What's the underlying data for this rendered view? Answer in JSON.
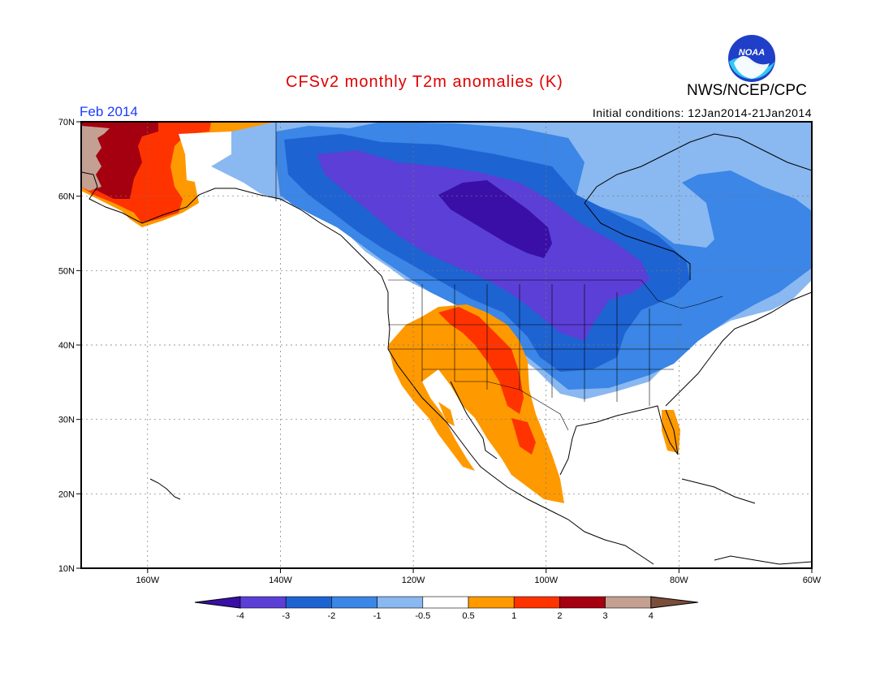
{
  "header": {
    "title": "CFSv2 monthly T2m anomalies (K)",
    "agency": "NWS/NCEP/CPC",
    "valid_month": "Feb 2014",
    "initial_conditions": "Initial conditions: 12Jan2014-21Jan2014",
    "logo_text": "NOAA"
  },
  "map": {
    "region": "North America",
    "lon_range": [
      -170,
      -60
    ],
    "lat_range": [
      10,
      70
    ],
    "lat_ticks": [
      {
        "value": 70,
        "label": "70N"
      },
      {
        "value": 60,
        "label": "60N"
      },
      {
        "value": 50,
        "label": "50N"
      },
      {
        "value": 40,
        "label": "40N"
      },
      {
        "value": 30,
        "label": "30N"
      },
      {
        "value": 20,
        "label": "20N"
      },
      {
        "value": 10,
        "label": "10N"
      }
    ],
    "lon_ticks": [
      {
        "value": -160,
        "label": "160W"
      },
      {
        "value": -140,
        "label": "140W"
      },
      {
        "value": -120,
        "label": "120W"
      },
      {
        "value": -100,
        "label": "100W"
      },
      {
        "value": -80,
        "label": "80W"
      },
      {
        "value": -60,
        "label": "60W"
      }
    ],
    "grid": true,
    "anomaly_regions": [
      {
        "name": "western-alaska",
        "category": 3
      },
      {
        "name": "alaska-coast",
        "category": 1
      },
      {
        "name": "canada-cold",
        "category": -1
      },
      {
        "name": "hudson-bay-core",
        "category": -4
      },
      {
        "name": "central-canada",
        "category": -3
      },
      {
        "name": "eastern-us-cold",
        "category": -2
      },
      {
        "name": "southwest-us-warm",
        "category": 0.5
      },
      {
        "name": "rockies-warm",
        "category": 2
      },
      {
        "name": "mexico-warm",
        "category": 0.5
      },
      {
        "name": "florida-warm",
        "category": 0.5
      }
    ]
  },
  "colorbar": {
    "labels": [
      "-4",
      "-3",
      "-2",
      "-1",
      "-0.5",
      "0.5",
      "1",
      "2",
      "3",
      "4"
    ],
    "colors": [
      "#3a0fa8",
      "#5b3fd6",
      "#1e63d2",
      "#3b86e6",
      "#8ab8f0",
      "#ffffff",
      "#ff9900",
      "#ff3300",
      "#a50010",
      "#c4a092",
      "#7a4e3a"
    ]
  },
  "colors": {
    "title": "#e00000",
    "valid_month": "#1a3cff",
    "below_m4": "#3a0fa8",
    "m4_m3": "#5b3fd6",
    "m3_m2": "#1e63d2",
    "m2_m1": "#3b86e6",
    "m1_m05": "#8ab8f0",
    "neutral": "#ffffff",
    "p05_p1": "#ff9900",
    "p1_p2": "#ff3300",
    "p2_p3": "#a50010",
    "p3_p4": "#c4a092",
    "above_p4": "#7a4e3a"
  }
}
